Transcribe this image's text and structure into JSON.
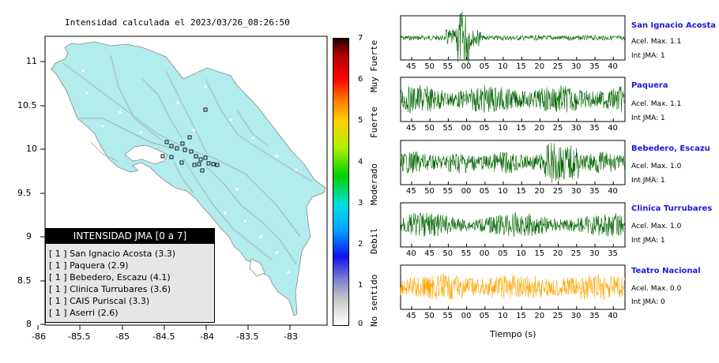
{
  "map": {
    "title": "Intensidad calculada el 2023/03/26_08:26:50",
    "x_ticks": [
      "-86",
      "-85.5",
      "-85",
      "-84.5",
      "-84",
      "-83.5",
      "-83"
    ],
    "y_ticks": [
      "11",
      "10.5",
      "10",
      "9.5",
      "9",
      "8.5",
      "8"
    ],
    "land_color": "#b2ecec"
  },
  "legend": {
    "header": "INTENSIDAD JMA [0 a 7]",
    "items": [
      "[ 1 ]  San Ignacio Acosta (3.3)",
      "[ 1 ]  Paquera (2.9)",
      "[ 1 ]  Bebedero, Escazu (4.1)",
      "[ 1 ]  Clinica Turrubares (3.6)",
      "[ 1 ]  CAIS Puriscal (3.3)",
      "[ 1 ]  Aserri (2.6)"
    ]
  },
  "colorbar": {
    "ticks": [
      "7",
      "6",
      "5",
      "4",
      "3",
      "2",
      "1",
      "0"
    ],
    "words": [
      "Muy Fuerte",
      "Fuerte",
      "Moderado",
      "Debil",
      "No sentido"
    ]
  },
  "stations": [
    {
      "name": "San Ignacio Acosta",
      "acel": "Acel. Max. 1.1",
      "int": "Int JMA: 1",
      "color": "#006400",
      "ticks": [
        "45",
        "50",
        "55",
        "00",
        "05",
        "10",
        "15",
        "20",
        "25",
        "30",
        "35",
        "40"
      ]
    },
    {
      "name": "Paquera",
      "acel": "Acel. Max. 1.1",
      "int": "Int JMA: 1",
      "color": "#006400",
      "ticks": [
        "45",
        "50",
        "55",
        "00",
        "05",
        "10",
        "15",
        "20",
        "25",
        "30",
        "35",
        "40"
      ]
    },
    {
      "name": "Bebedero, Escazu",
      "acel": "Acel. Max. 1.0",
      "int": "Int JMA: 1",
      "color": "#006400",
      "ticks": [
        "45",
        "50",
        "55",
        "00",
        "05",
        "10",
        "15",
        "20",
        "25",
        "30",
        "35",
        "40"
      ]
    },
    {
      "name": "Clinica Turrubares",
      "acel": "Acel. Max. 1.0",
      "int": "Int JMA: 1",
      "color": "#006400",
      "ticks": [
        "40",
        "45",
        "50",
        "55",
        "00",
        "05",
        "10",
        "15",
        "20",
        "25",
        "30",
        "35"
      ]
    },
    {
      "name": "Teatro Nacional",
      "acel": "Acel. Max. 0.0",
      "int": "Int JMA: 0",
      "color": "#ffa500",
      "ticks": [
        "45",
        "50",
        "55",
        "00",
        "05",
        "10",
        "15",
        "20",
        "25",
        "30",
        "35",
        "40"
      ]
    }
  ],
  "time_axis_label": "Tiempo (s)"
}
